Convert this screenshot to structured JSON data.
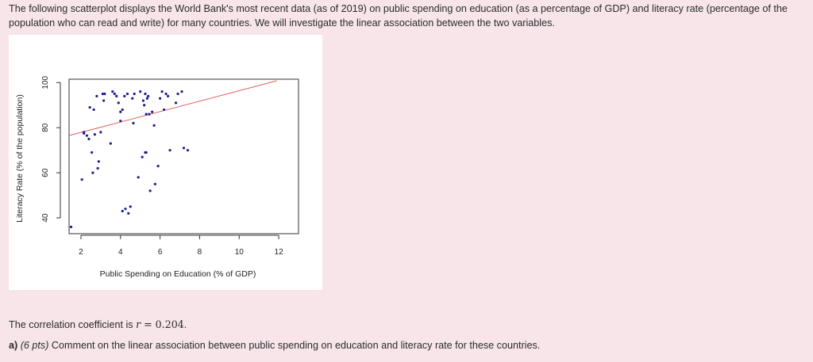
{
  "intro_text": "The following scatterplot displays the World Bank's most recent data (as of 2019) on public spending on education (as a percentage of GDP) and literacy rate (percentage of the population who can read and write) for many countries. We will investigate the linear association between the two variables.",
  "correlation": {
    "prefix": "The correlation coefficient is ",
    "symbol": "r",
    "equals": " = ",
    "value": "0.204",
    "suffix": "."
  },
  "question": {
    "label": "a)",
    "points": "(6 pts)",
    "text": " Comment on the linear association between public spending on education and literacy rate for these countries."
  },
  "chart_data": {
    "type": "scatter",
    "title": "",
    "xlabel": "Public Spending on Education (% of GDP)",
    "ylabel": "Literacy Rate (% of the population)",
    "xlim": [
      1.4,
      13.0
    ],
    "ylim": [
      33,
      101.5
    ],
    "xticks": [
      2,
      4,
      6,
      8,
      10,
      12
    ],
    "yticks": [
      40,
      60,
      80,
      100
    ],
    "grid": false,
    "point_color": "#1a1f8f",
    "trend_color": "#e06060",
    "trend_line": {
      "x": [
        1.4,
        11.9
      ],
      "y": [
        76.5,
        100.8
      ]
    },
    "x": [
      1.5,
      2.05,
      2.15,
      2.15,
      2.3,
      2.4,
      2.45,
      2.55,
      2.6,
      2.65,
      2.7,
      2.8,
      2.85,
      2.9,
      3.0,
      3.1,
      3.15,
      3.2,
      3.5,
      3.6,
      3.7,
      3.8,
      3.9,
      4.0,
      4.0,
      4.1,
      4.1,
      4.2,
      4.25,
      4.35,
      4.4,
      4.5,
      4.6,
      4.65,
      4.7,
      4.9,
      5.0,
      5.1,
      5.15,
      5.2,
      5.25,
      5.25,
      5.3,
      5.3,
      5.35,
      5.4,
      5.45,
      5.5,
      5.6,
      5.7,
      5.75,
      5.9,
      6.0,
      6.1,
      6.2,
      6.3,
      6.4,
      6.5,
      6.8,
      6.9,
      7.1,
      7.2,
      7.4
    ],
    "y": [
      36,
      57,
      78,
      77.5,
      76.5,
      75,
      89,
      69,
      60,
      88,
      77,
      94,
      62,
      65,
      78,
      95,
      92,
      95,
      73,
      96,
      95,
      94,
      91,
      83,
      87,
      88,
      43,
      94,
      44,
      95,
      42,
      45,
      93,
      82,
      95,
      58,
      96,
      67,
      92,
      90,
      95,
      69,
      86,
      69,
      93,
      94,
      86,
      52,
      87,
      81,
      55,
      63,
      93,
      96,
      88,
      95,
      94,
      70,
      91,
      95,
      96,
      71,
      70
    ]
  }
}
